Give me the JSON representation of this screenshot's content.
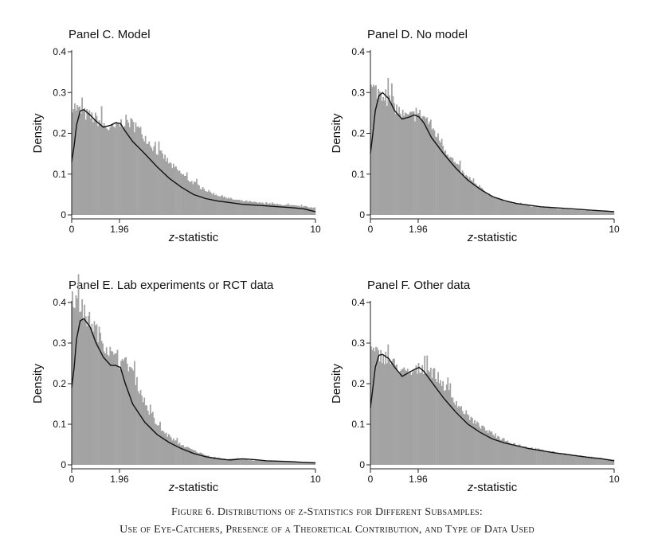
{
  "figure": {
    "caption_line1": "Figure 6. Distributions of z-Statistics for Different Subsamples:",
    "caption_line2": "Use of Eye-Catchers, Presence of a Theoretical Contribution, and Type of Data Used"
  },
  "colors": {
    "bars": "#a3a3a3",
    "curve": "#111111",
    "axis": "#222222"
  },
  "chart_data": [
    {
      "type": "bar",
      "title": "Panel C. Model",
      "xlabel": "z-statistic",
      "ylabel": "Density",
      "xlim": [
        0,
        10
      ],
      "ylim": [
        0,
        0.4
      ],
      "xticks": [
        {
          "value": 0,
          "label": "0"
        },
        {
          "value": 1.96,
          "label": "1.96"
        },
        {
          "value": 10,
          "label": "10"
        }
      ],
      "yticks": [
        {
          "value": 0,
          "label": "0"
        },
        {
          "value": 0.1,
          "label": "0.1"
        },
        {
          "value": 0.2,
          "label": "0.2"
        },
        {
          "value": 0.3,
          "label": "0.3"
        },
        {
          "value": 0.4,
          "label": "0.4"
        }
      ],
      "density_curve": {
        "x": [
          0,
          0.1,
          0.2,
          0.35,
          0.5,
          0.75,
          1.0,
          1.3,
          1.6,
          1.8,
          2.0,
          2.2,
          2.5,
          3,
          3.5,
          4,
          4.5,
          5,
          5.5,
          6,
          6.5,
          7,
          7.5,
          8,
          8.5,
          9,
          9.5,
          10
        ],
        "y": [
          0.13,
          0.17,
          0.22,
          0.255,
          0.258,
          0.245,
          0.23,
          0.215,
          0.22,
          0.226,
          0.224,
          0.205,
          0.18,
          0.15,
          0.118,
          0.09,
          0.068,
          0.05,
          0.04,
          0.034,
          0.03,
          0.026,
          0.024,
          0.022,
          0.02,
          0.018,
          0.015,
          0.008
        ]
      },
      "histogram_top": [
        0.27,
        0.26,
        0.25,
        0.245,
        0.24,
        0.235,
        0.225,
        0.215,
        0.21,
        0.215,
        0.225,
        0.23,
        0.225,
        0.215,
        0.205,
        0.19,
        0.175,
        0.16,
        0.15,
        0.14,
        0.125,
        0.115,
        0.105,
        0.095,
        0.085,
        0.078,
        0.07,
        0.063,
        0.057,
        0.052,
        0.048,
        0.044,
        0.041,
        0.038,
        0.036,
        0.034,
        0.033,
        0.031,
        0.03,
        0.029,
        0.028,
        0.027,
        0.026,
        0.025,
        0.024,
        0.023,
        0.022,
        0.021,
        0.02,
        0.018
      ]
    },
    {
      "type": "bar",
      "title": "Panel D. No model",
      "xlabel": "z-statistic",
      "ylabel": "Density",
      "xlim": [
        0,
        10
      ],
      "ylim": [
        0,
        0.4
      ],
      "xticks": [
        {
          "value": 0,
          "label": "0"
        },
        {
          "value": 1.96,
          "label": "1.96"
        },
        {
          "value": 10,
          "label": "10"
        }
      ],
      "yticks": [
        {
          "value": 0,
          "label": "0"
        },
        {
          "value": 0.1,
          "label": "0.1"
        },
        {
          "value": 0.2,
          "label": "0.2"
        },
        {
          "value": 0.3,
          "label": "0.3"
        },
        {
          "value": 0.4,
          "label": "0.4"
        }
      ],
      "density_curve": {
        "x": [
          0,
          0.1,
          0.2,
          0.35,
          0.5,
          0.75,
          1.0,
          1.3,
          1.6,
          1.8,
          2.0,
          2.2,
          2.5,
          3,
          3.5,
          4,
          4.5,
          5,
          5.5,
          6,
          6.5,
          7,
          7.5,
          8,
          8.5,
          9,
          9.5,
          10
        ],
        "y": [
          0.15,
          0.2,
          0.255,
          0.292,
          0.3,
          0.285,
          0.255,
          0.235,
          0.24,
          0.245,
          0.24,
          0.225,
          0.19,
          0.15,
          0.115,
          0.085,
          0.063,
          0.045,
          0.035,
          0.028,
          0.024,
          0.02,
          0.018,
          0.016,
          0.014,
          0.012,
          0.01,
          0.008
        ]
      },
      "histogram_top": [
        0.31,
        0.305,
        0.3,
        0.29,
        0.28,
        0.265,
        0.25,
        0.24,
        0.24,
        0.245,
        0.245,
        0.24,
        0.225,
        0.205,
        0.185,
        0.165,
        0.148,
        0.13,
        0.115,
        0.1,
        0.088,
        0.078,
        0.068,
        0.06,
        0.052,
        0.046,
        0.041,
        0.036,
        0.033,
        0.03,
        0.027,
        0.025,
        0.023,
        0.021,
        0.02,
        0.019,
        0.018,
        0.017,
        0.016,
        0.015,
        0.014,
        0.013,
        0.012,
        0.012,
        0.011,
        0.01,
        0.01,
        0.009,
        0.009,
        0.008
      ]
    },
    {
      "type": "bar",
      "title": "Panel E. Lab experiments or RCT data",
      "xlabel": "z-statistic",
      "ylabel": "Density",
      "xlim": [
        0,
        10
      ],
      "ylim": [
        0,
        0.45
      ],
      "xticks": [
        {
          "value": 0,
          "label": "0"
        },
        {
          "value": 1.96,
          "label": "1.96"
        },
        {
          "value": 10,
          "label": "10"
        }
      ],
      "yticks": [
        {
          "value": 0,
          "label": "0"
        },
        {
          "value": 0.1,
          "label": "0.1"
        },
        {
          "value": 0.2,
          "label": "0.2"
        },
        {
          "value": 0.3,
          "label": "0.3"
        },
        {
          "value": 0.4,
          "label": "0.4"
        }
      ],
      "density_curve": {
        "x": [
          0,
          0.1,
          0.2,
          0.35,
          0.5,
          0.75,
          1.0,
          1.3,
          1.6,
          1.8,
          2.0,
          2.2,
          2.5,
          3,
          3.5,
          4,
          4.5,
          5,
          5.5,
          6,
          6.5,
          7,
          7.5,
          8,
          8.5,
          9,
          9.5,
          10
        ],
        "y": [
          0.19,
          0.24,
          0.31,
          0.355,
          0.36,
          0.34,
          0.3,
          0.265,
          0.245,
          0.245,
          0.24,
          0.2,
          0.15,
          0.105,
          0.075,
          0.055,
          0.04,
          0.028,
          0.02,
          0.015,
          0.012,
          0.015,
          0.013,
          0.01,
          0.009,
          0.008,
          0.006,
          0.005
        ]
      },
      "histogram_top": [
        0.42,
        0.4,
        0.38,
        0.36,
        0.35,
        0.33,
        0.31,
        0.29,
        0.27,
        0.26,
        0.25,
        0.25,
        0.24,
        0.21,
        0.18,
        0.15,
        0.125,
        0.105,
        0.09,
        0.078,
        0.068,
        0.06,
        0.052,
        0.046,
        0.04,
        0.035,
        0.03,
        0.026,
        0.022,
        0.019,
        0.017,
        0.015,
        0.013,
        0.015,
        0.016,
        0.014,
        0.012,
        0.011,
        0.01,
        0.01,
        0.009,
        0.009,
        0.008,
        0.008,
        0.007,
        0.007,
        0.006,
        0.006,
        0.005,
        0.005
      ]
    },
    {
      "type": "bar",
      "title": "Panel F. Other data",
      "xlabel": "z-statistic",
      "ylabel": "Density",
      "xlim": [
        0,
        10
      ],
      "ylim": [
        0,
        0.4
      ],
      "xticks": [
        {
          "value": 0,
          "label": "0"
        },
        {
          "value": 1.96,
          "label": "1.96"
        },
        {
          "value": 10,
          "label": "10"
        }
      ],
      "yticks": [
        {
          "value": 0,
          "label": "0"
        },
        {
          "value": 0.1,
          "label": "0.1"
        },
        {
          "value": 0.2,
          "label": "0.2"
        },
        {
          "value": 0.3,
          "label": "0.3"
        },
        {
          "value": 0.4,
          "label": "0.4"
        }
      ],
      "density_curve": {
        "x": [
          0,
          0.1,
          0.2,
          0.35,
          0.5,
          0.75,
          1.0,
          1.3,
          1.6,
          1.8,
          2.0,
          2.2,
          2.5,
          3,
          3.5,
          4,
          4.5,
          5,
          5.5,
          6,
          6.5,
          7,
          7.5,
          8,
          8.5,
          9,
          9.5,
          10
        ],
        "y": [
          0.14,
          0.19,
          0.24,
          0.27,
          0.272,
          0.262,
          0.24,
          0.218,
          0.228,
          0.235,
          0.24,
          0.23,
          0.205,
          0.165,
          0.13,
          0.1,
          0.08,
          0.064,
          0.054,
          0.047,
          0.04,
          0.035,
          0.03,
          0.026,
          0.022,
          0.018,
          0.015,
          0.01
        ]
      },
      "histogram_top": [
        0.28,
        0.275,
        0.27,
        0.265,
        0.255,
        0.245,
        0.235,
        0.225,
        0.225,
        0.23,
        0.238,
        0.24,
        0.235,
        0.225,
        0.21,
        0.195,
        0.178,
        0.162,
        0.146,
        0.132,
        0.12,
        0.108,
        0.098,
        0.09,
        0.082,
        0.075,
        0.069,
        0.063,
        0.058,
        0.054,
        0.05,
        0.047,
        0.044,
        0.041,
        0.039,
        0.036,
        0.034,
        0.032,
        0.03,
        0.028,
        0.026,
        0.025,
        0.023,
        0.022,
        0.02,
        0.019,
        0.018,
        0.017,
        0.015,
        0.013
      ]
    }
  ]
}
